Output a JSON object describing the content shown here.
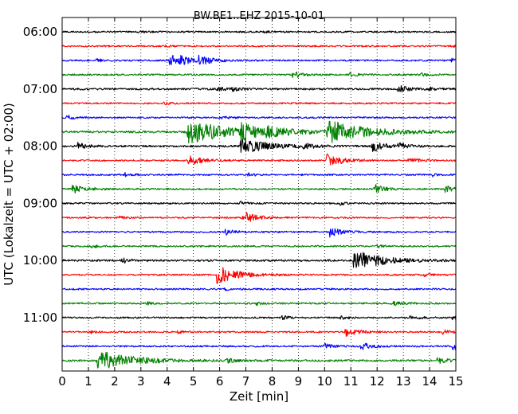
{
  "chart_data": {
    "type": "line",
    "title": "BW.BE1..EHZ 2015-10-01",
    "xlabel": "Zeit  [min]",
    "ylabel": "UTC (Lokalzeit = UTC + 02:00)",
    "xlim": [
      0,
      15
    ],
    "x_ticks": [
      0,
      1,
      2,
      3,
      4,
      5,
      6,
      7,
      8,
      9,
      10,
      11,
      12,
      13,
      14,
      15
    ],
    "x_tick_labels": [
      "0",
      "1",
      "2",
      "3",
      "4",
      "5",
      "6",
      "7",
      "8",
      "9",
      "10",
      "11",
      "12",
      "13",
      "14",
      "15"
    ],
    "y_tick_labels": [
      {
        "trace": 0,
        "label": "06:00"
      },
      {
        "trace": 4,
        "label": "07:00"
      },
      {
        "trace": 8,
        "label": "08:00"
      },
      {
        "trace": 12,
        "label": "09:00"
      },
      {
        "trace": 16,
        "label": "10:00"
      },
      {
        "trace": 20,
        "label": "11:00"
      }
    ],
    "grid": "vertical dotted",
    "trace_minutes": 15,
    "colors": [
      "#000000",
      "#ff0000",
      "#0000ff",
      "#008000"
    ],
    "traces": [
      {
        "start": "06:00",
        "color": "#000000",
        "noise": 1.0,
        "events": [
          {
            "t": 2.9,
            "a": 1.5,
            "d": 0.25
          },
          {
            "t": 7.7,
            "a": 1.2,
            "d": 0.2
          }
        ]
      },
      {
        "start": "06:15",
        "color": "#ff0000",
        "noise": 1.0,
        "events": [
          {
            "t": 3.8,
            "a": 1.2,
            "d": 0.2
          },
          {
            "t": 14.8,
            "a": 2.0,
            "d": 0.2
          }
        ]
      },
      {
        "start": "06:30",
        "color": "#0000ff",
        "noise": 1.0,
        "events": [
          {
            "t": 1.3,
            "a": 2.0,
            "d": 0.25
          },
          {
            "t": 4.1,
            "a": 7.0,
            "d": 0.5
          },
          {
            "t": 4.5,
            "a": 3.0,
            "d": 0.4
          },
          {
            "t": 5.2,
            "a": 5.0,
            "d": 0.5
          },
          {
            "t": 14.8,
            "a": 3.0,
            "d": 0.2
          }
        ]
      },
      {
        "start": "06:45",
        "color": "#008000",
        "noise": 1.0,
        "events": [
          {
            "t": 8.8,
            "a": 5.0,
            "d": 0.3
          },
          {
            "t": 10.9,
            "a": 3.0,
            "d": 0.3
          },
          {
            "t": 13.7,
            "a": 2.0,
            "d": 0.2
          }
        ]
      },
      {
        "start": "07:00",
        "color": "#000000",
        "noise": 1.2,
        "events": [
          {
            "t": 5.9,
            "a": 3.0,
            "d": 0.25
          },
          {
            "t": 6.5,
            "a": 3.0,
            "d": 0.25
          },
          {
            "t": 12.8,
            "a": 5.0,
            "d": 0.3
          },
          {
            "t": 14.0,
            "a": 2.0,
            "d": 0.2
          }
        ]
      },
      {
        "start": "07:15",
        "color": "#ff0000",
        "noise": 1.0,
        "events": [
          {
            "t": 3.9,
            "a": 1.5,
            "d": 0.2
          }
        ]
      },
      {
        "start": "07:30",
        "color": "#0000ff",
        "noise": 1.0,
        "events": [
          {
            "t": 0.2,
            "a": 3.0,
            "d": 0.2
          },
          {
            "t": 6.0,
            "a": 2.0,
            "d": 0.3
          }
        ]
      },
      {
        "start": "07:45",
        "color": "#008000",
        "noise": 1.3,
        "events": [
          {
            "t": 4.8,
            "a": 14.0,
            "d": 1.6
          },
          {
            "t": 6.8,
            "a": 8.0,
            "d": 0.8
          },
          {
            "t": 7.8,
            "a": 3.0,
            "d": 0.8
          },
          {
            "t": 10.1,
            "a": 14.0,
            "d": 1.3
          }
        ]
      },
      {
        "start": "08:00",
        "color": "#000000",
        "noise": 1.2,
        "events": [
          {
            "t": 0.6,
            "a": 4.0,
            "d": 0.3
          },
          {
            "t": 6.8,
            "a": 10.0,
            "d": 0.9
          },
          {
            "t": 9.2,
            "a": 4.0,
            "d": 0.3
          },
          {
            "t": 11.8,
            "a": 7.0,
            "d": 0.4
          },
          {
            "t": 12.8,
            "a": 4.0,
            "d": 0.3
          }
        ]
      },
      {
        "start": "08:15",
        "color": "#ff0000",
        "noise": 1.0,
        "events": [
          {
            "t": 4.8,
            "a": 6.0,
            "d": 0.5
          },
          {
            "t": 10.1,
            "a": 9.0,
            "d": 0.5
          },
          {
            "t": 13.2,
            "a": 3.0,
            "d": 0.4
          }
        ]
      },
      {
        "start": "08:30",
        "color": "#0000ff",
        "noise": 1.0,
        "events": [
          {
            "t": 2.4,
            "a": 3.0,
            "d": 0.2
          },
          {
            "t": 7.1,
            "a": 2.0,
            "d": 0.2
          },
          {
            "t": 14.1,
            "a": 2.0,
            "d": 0.2
          }
        ]
      },
      {
        "start": "08:45",
        "color": "#008000",
        "noise": 1.0,
        "events": [
          {
            "t": 0.4,
            "a": 6.0,
            "d": 0.4
          },
          {
            "t": 11.9,
            "a": 6.0,
            "d": 0.3
          },
          {
            "t": 14.6,
            "a": 4.0,
            "d": 0.3
          }
        ]
      },
      {
        "start": "09:00",
        "color": "#000000",
        "noise": 1.0,
        "events": [
          {
            "t": 6.8,
            "a": 2.0,
            "d": 0.2
          },
          {
            "t": 10.6,
            "a": 2.0,
            "d": 0.2
          }
        ]
      },
      {
        "start": "09:15",
        "color": "#ff0000",
        "noise": 1.0,
        "events": [
          {
            "t": 6.9,
            "a": 8.0,
            "d": 0.4
          },
          {
            "t": 2.2,
            "a": 1.5,
            "d": 0.2
          }
        ]
      },
      {
        "start": "09:30",
        "color": "#0000ff",
        "noise": 1.0,
        "events": [
          {
            "t": 6.2,
            "a": 4.0,
            "d": 0.3
          },
          {
            "t": 10.2,
            "a": 6.0,
            "d": 0.4
          }
        ]
      },
      {
        "start": "09:45",
        "color": "#008000",
        "noise": 1.0,
        "events": [
          {
            "t": 1.1,
            "a": 3.0,
            "d": 0.2
          },
          {
            "t": 12.0,
            "a": 2.0,
            "d": 0.2
          }
        ]
      },
      {
        "start": "10:00",
        "color": "#000000",
        "noise": 1.2,
        "events": [
          {
            "t": 2.3,
            "a": 3.0,
            "d": 0.2
          },
          {
            "t": 11.1,
            "a": 13.0,
            "d": 1.0
          }
        ]
      },
      {
        "start": "10:15",
        "color": "#ff0000",
        "noise": 1.0,
        "events": [
          {
            "t": 5.9,
            "a": 11.0,
            "d": 0.7
          },
          {
            "t": 13.8,
            "a": 2.0,
            "d": 0.2
          }
        ]
      },
      {
        "start": "10:30",
        "color": "#0000ff",
        "noise": 1.0,
        "events": [
          {
            "t": 6.2,
            "a": 2.0,
            "d": 0.2
          }
        ]
      },
      {
        "start": "10:45",
        "color": "#008000",
        "noise": 1.0,
        "events": [
          {
            "t": 3.2,
            "a": 2.0,
            "d": 0.2
          },
          {
            "t": 7.4,
            "a": 2.0,
            "d": 0.2
          },
          {
            "t": 12.6,
            "a": 2.5,
            "d": 0.3
          }
        ]
      },
      {
        "start": "11:00",
        "color": "#000000",
        "noise": 1.0,
        "events": [
          {
            "t": 8.4,
            "a": 3.0,
            "d": 0.2
          },
          {
            "t": 10.6,
            "a": 3.0,
            "d": 0.2
          },
          {
            "t": 13.2,
            "a": 2.0,
            "d": 0.5
          },
          {
            "t": 14.9,
            "a": 4.0,
            "d": 0.2
          }
        ]
      },
      {
        "start": "11:15",
        "color": "#ff0000",
        "noise": 1.0,
        "events": [
          {
            "t": 1.1,
            "a": 2.0,
            "d": 0.2
          },
          {
            "t": 4.4,
            "a": 2.0,
            "d": 0.2
          },
          {
            "t": 10.8,
            "a": 5.0,
            "d": 0.5
          },
          {
            "t": 14.5,
            "a": 3.0,
            "d": 0.2
          }
        ]
      },
      {
        "start": "11:30",
        "color": "#0000ff",
        "noise": 1.0,
        "events": [
          {
            "t": 10.0,
            "a": 3.0,
            "d": 0.3
          },
          {
            "t": 11.4,
            "a": 5.0,
            "d": 0.3
          },
          {
            "t": 14.9,
            "a": 6.0,
            "d": 0.4
          }
        ]
      },
      {
        "start": "11:45",
        "color": "#008000",
        "noise": 1.2,
        "events": [
          {
            "t": 1.35,
            "a": 13.0,
            "d": 1.2
          },
          {
            "t": 6.3,
            "a": 3.0,
            "d": 0.2
          },
          {
            "t": 14.3,
            "a": 4.0,
            "d": 0.3
          }
        ]
      }
    ]
  }
}
